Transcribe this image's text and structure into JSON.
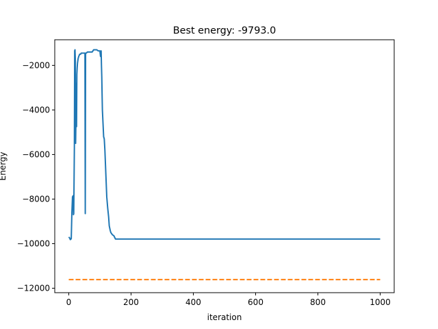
{
  "chart_data": {
    "type": "line",
    "title": "Best energy: -9793.0",
    "xlabel": "iteration",
    "ylabel": "Energy",
    "xlim": [
      -45,
      1045
    ],
    "ylim": [
      -12200,
      -850
    ],
    "xticks": [
      0,
      200,
      400,
      600,
      800,
      1000
    ],
    "yticks": [
      -12000,
      -10000,
      -8000,
      -6000,
      -4000,
      -2000
    ],
    "xtick_labels": [
      "0",
      "200",
      "400",
      "600",
      "800",
      "1000"
    ],
    "ytick_labels": [
      "−12000",
      "−10000",
      "−8000",
      "−6000",
      "−4000",
      "−2000"
    ],
    "grid": false,
    "series": [
      {
        "color": "#1f77b4",
        "style": "solid",
        "x": [
          0,
          3,
          5,
          8,
          10,
          12,
          14,
          15,
          16,
          17,
          18,
          19,
          20,
          21,
          22,
          23,
          24,
          25,
          26,
          27,
          28,
          30,
          32,
          35,
          38,
          40,
          45,
          50,
          52,
          53,
          54,
          56,
          60,
          65,
          70,
          75,
          80,
          85,
          90,
          95,
          100,
          102,
          103,
          104,
          105,
          106,
          107,
          108,
          110,
          112,
          114,
          116,
          118,
          120,
          122,
          125,
          128,
          130,
          133,
          135,
          140,
          145,
          150,
          160,
          180,
          200,
          300,
          400,
          500,
          600,
          700,
          800,
          900,
          1000
        ],
        "y": [
          -9700,
          -9750,
          -9820,
          -9780,
          -8600,
          -7900,
          -7850,
          -8700,
          -8650,
          -7200,
          -5700,
          -1350,
          -1300,
          -1700,
          -5500,
          -4500,
          -2800,
          -4750,
          -2400,
          -2100,
          -1900,
          -1700,
          -1600,
          -1500,
          -1500,
          -1450,
          -1450,
          -1450,
          -1450,
          -8650,
          -1450,
          -1450,
          -1400,
          -1400,
          -1400,
          -1400,
          -1300,
          -1300,
          -1300,
          -1350,
          -1350,
          -1600,
          -1350,
          -1350,
          -2000,
          -2500,
          -3300,
          -4000,
          -4600,
          -5200,
          -5300,
          -5800,
          -6500,
          -7200,
          -7900,
          -8400,
          -8800,
          -9200,
          -9400,
          -9500,
          -9600,
          -9650,
          -9793,
          -9793,
          -9793,
          -9793,
          -9793,
          -9793,
          -9793,
          -9793,
          -9793,
          -9793,
          -9793,
          -9793
        ]
      },
      {
        "color": "#ff7f0e",
        "style": "dashed",
        "x": [
          0,
          1000
        ],
        "y": [
          -11610,
          -11610
        ]
      }
    ]
  }
}
